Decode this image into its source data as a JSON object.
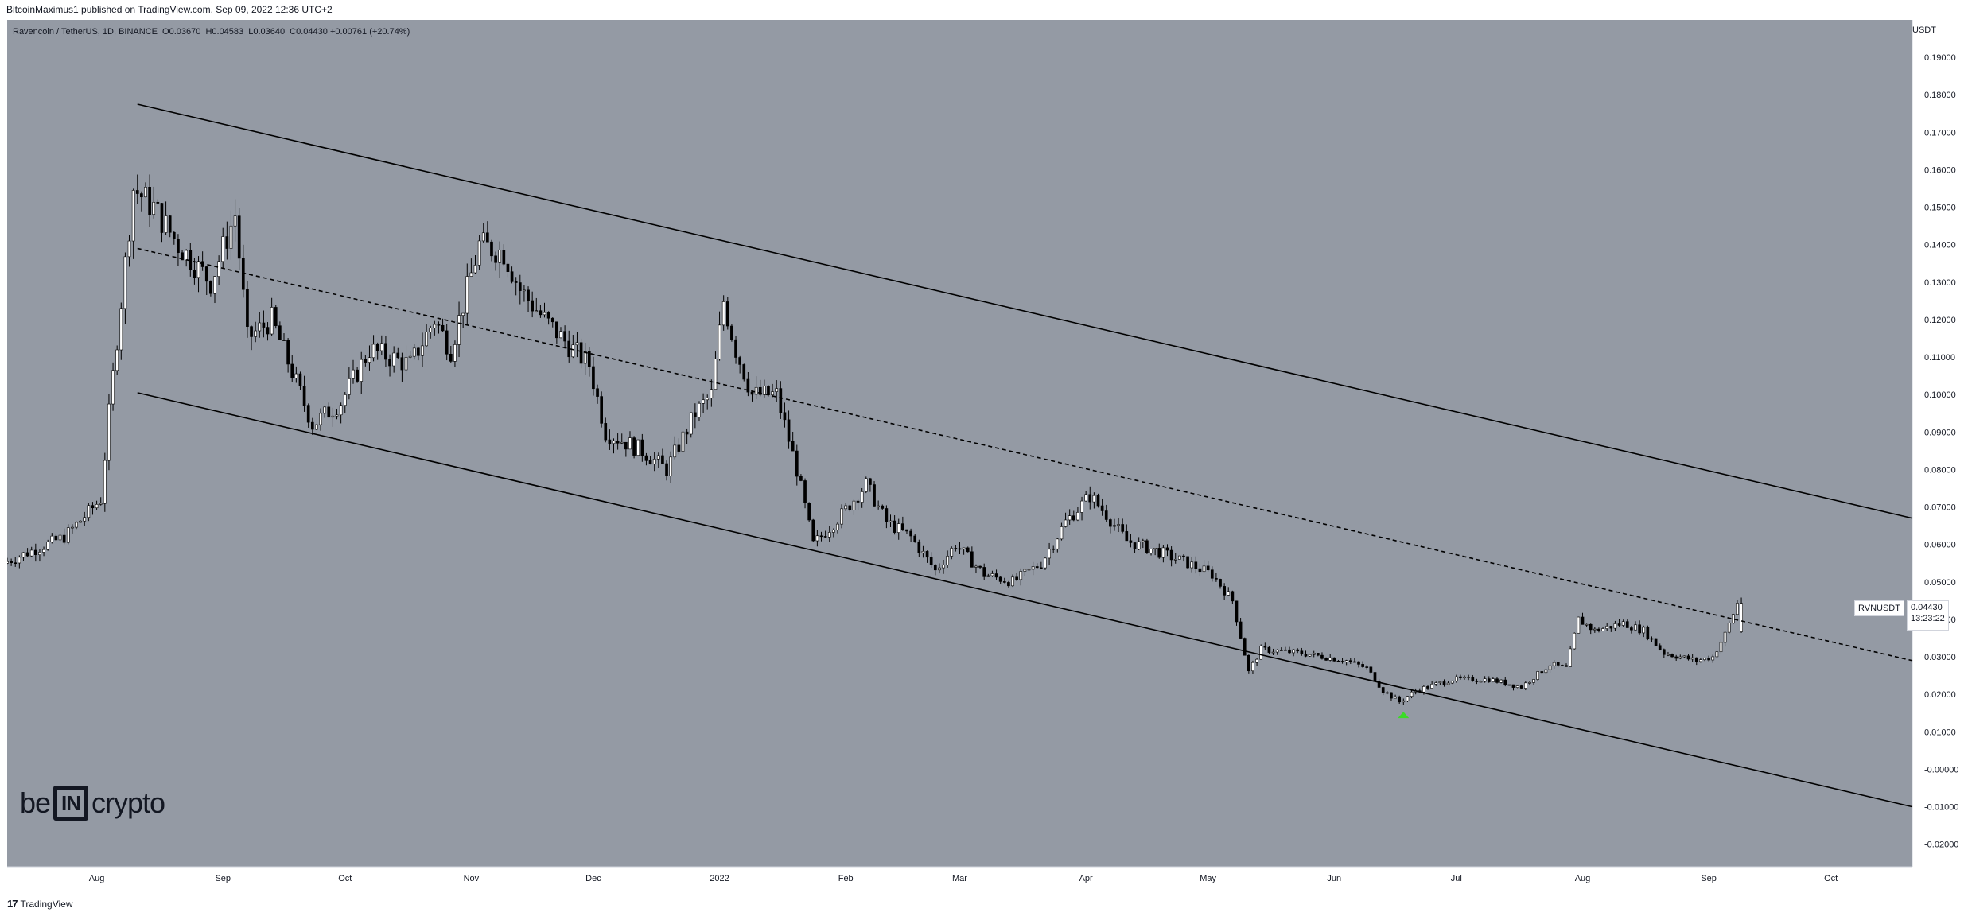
{
  "header": {
    "publish_text": "BitcoinMaximus1 published on TradingView.com, Sep 09, 2022 12:36 UTC+2"
  },
  "legend": {
    "symbol_text": "Ravencoin / TetherUS, 1D, BINANCE",
    "o_label": "O",
    "o_value": "0.03670",
    "h_label": "H",
    "h_value": "0.04583",
    "l_label": "L",
    "l_value": "0.03640",
    "c_label": "C",
    "c_value": "0.04430",
    "change": "+0.00761 (+20.74%)"
  },
  "price_tag": {
    "symbol": "RVNUSDT",
    "price": "0.04430",
    "countdown": "13:23:22"
  },
  "logo": {
    "left": "be",
    "box": "IN",
    "right": "crypto"
  },
  "footer": {
    "brand": "TradingView",
    "icon": "tradingview-logo-icon"
  },
  "colors": {
    "background": "#949aa4",
    "candle_up": "#ffffff",
    "candle_down": "#000000",
    "channel_line": "#000000",
    "marker": "#3bdb27"
  },
  "chart_data": {
    "type": "candlestick",
    "symbol": "RVNUSDT",
    "timeframe": "1D",
    "y_axis_title": "USDT",
    "ylim": [
      -0.026,
      0.2
    ],
    "y_ticks": [
      {
        "value": 0.19,
        "label": "0.19000"
      },
      {
        "value": 0.18,
        "label": "0.18000"
      },
      {
        "value": 0.17,
        "label": "0.17000"
      },
      {
        "value": 0.16,
        "label": "0.16000"
      },
      {
        "value": 0.15,
        "label": "0.15000"
      },
      {
        "value": 0.14,
        "label": "0.14000"
      },
      {
        "value": 0.13,
        "label": "0.13000"
      },
      {
        "value": 0.12,
        "label": "0.12000"
      },
      {
        "value": 0.11,
        "label": "0.11000"
      },
      {
        "value": 0.1,
        "label": "0.10000"
      },
      {
        "value": 0.09,
        "label": "0.09000"
      },
      {
        "value": 0.08,
        "label": "0.08000"
      },
      {
        "value": 0.07,
        "label": "0.07000"
      },
      {
        "value": 0.06,
        "label": "0.06000"
      },
      {
        "value": 0.05,
        "label": "0.05000"
      },
      {
        "value": 0.04,
        "label": "0.04000"
      },
      {
        "value": 0.03,
        "label": "0.03000"
      },
      {
        "value": 0.02,
        "label": "0.02000"
      },
      {
        "value": 0.01,
        "label": "0.01000"
      },
      {
        "value": 0.0,
        "label": "-0.00000"
      },
      {
        "value": -0.01,
        "label": "-0.01000"
      },
      {
        "value": -0.02,
        "label": "-0.02000"
      }
    ],
    "x_ticks": [
      {
        "date": "2021-08-01",
        "label": "Aug"
      },
      {
        "date": "2021-09-01",
        "label": "Sep"
      },
      {
        "date": "2021-10-01",
        "label": "Oct"
      },
      {
        "date": "2021-11-01",
        "label": "Nov"
      },
      {
        "date": "2021-12-01",
        "label": "Dec"
      },
      {
        "date": "2022-01-01",
        "label": "2022"
      },
      {
        "date": "2022-02-01",
        "label": "Feb"
      },
      {
        "date": "2022-03-01",
        "label": "Mar"
      },
      {
        "date": "2022-04-01",
        "label": "Apr"
      },
      {
        "date": "2022-05-01",
        "label": "May"
      },
      {
        "date": "2022-06-01",
        "label": "Jun"
      },
      {
        "date": "2022-07-01",
        "label": "Jul"
      },
      {
        "date": "2022-08-01",
        "label": "Aug"
      },
      {
        "date": "2022-09-01",
        "label": "Sep"
      },
      {
        "date": "2022-10-01",
        "label": "Oct"
      }
    ],
    "x_range": [
      "2021-07-10",
      "2022-10-21"
    ],
    "price_path": [
      [
        "2021-07-10",
        0.055
      ],
      [
        "2021-07-25",
        0.062
      ],
      [
        "2021-08-03",
        0.072
      ],
      [
        "2021-08-05",
        0.095
      ],
      [
        "2021-08-08",
        0.125
      ],
      [
        "2021-08-11",
        0.155
      ],
      [
        "2021-08-16",
        0.15
      ],
      [
        "2021-08-22",
        0.14
      ],
      [
        "2021-08-30",
        0.13
      ],
      [
        "2021-09-05",
        0.148
      ],
      [
        "2021-09-08",
        0.115
      ],
      [
        "2021-09-14",
        0.12
      ],
      [
        "2021-09-24",
        0.092
      ],
      [
        "2021-10-01",
        0.098
      ],
      [
        "2021-10-08",
        0.112
      ],
      [
        "2021-10-18",
        0.108
      ],
      [
        "2021-10-24",
        0.12
      ],
      [
        "2021-10-28",
        0.112
      ],
      [
        "2021-11-04",
        0.14
      ],
      [
        "2021-11-10",
        0.138
      ],
      [
        "2021-11-14",
        0.128
      ],
      [
        "2021-11-20",
        0.12
      ],
      [
        "2021-11-27",
        0.112
      ],
      [
        "2021-12-01",
        0.108
      ],
      [
        "2021-12-05",
        0.09
      ],
      [
        "2021-12-14",
        0.085
      ],
      [
        "2021-12-20",
        0.08
      ],
      [
        "2021-12-27",
        0.095
      ],
      [
        "2021-12-31",
        0.1
      ],
      [
        "2022-01-03",
        0.125
      ],
      [
        "2022-01-06",
        0.112
      ],
      [
        "2022-01-10",
        0.1
      ],
      [
        "2022-01-16",
        0.1
      ],
      [
        "2022-01-21",
        0.08
      ],
      [
        "2022-01-25",
        0.06
      ],
      [
        "2022-02-01",
        0.068
      ],
      [
        "2022-02-07",
        0.076
      ],
      [
        "2022-02-12",
        0.066
      ],
      [
        "2022-02-18",
        0.062
      ],
      [
        "2022-02-24",
        0.053
      ],
      [
        "2022-03-01",
        0.06
      ],
      [
        "2022-03-08",
        0.052
      ],
      [
        "2022-03-15",
        0.05
      ],
      [
        "2022-03-22",
        0.055
      ],
      [
        "2022-03-28",
        0.066
      ],
      [
        "2022-04-03",
        0.073
      ],
      [
        "2022-04-07",
        0.068
      ],
      [
        "2022-04-12",
        0.061
      ],
      [
        "2022-04-20",
        0.058
      ],
      [
        "2022-04-27",
        0.055
      ],
      [
        "2022-05-03",
        0.052
      ],
      [
        "2022-05-08",
        0.045
      ],
      [
        "2022-05-12",
        0.026
      ],
      [
        "2022-05-15",
        0.032
      ],
      [
        "2022-05-25",
        0.031
      ],
      [
        "2022-06-05",
        0.029
      ],
      [
        "2022-06-10",
        0.027
      ],
      [
        "2022-06-14",
        0.021
      ],
      [
        "2022-06-18",
        0.018
      ],
      [
        "2022-06-22",
        0.021
      ],
      [
        "2022-07-01",
        0.024
      ],
      [
        "2022-07-10",
        0.024
      ],
      [
        "2022-07-18",
        0.022
      ],
      [
        "2022-07-25",
        0.028
      ],
      [
        "2022-07-29",
        0.027
      ],
      [
        "2022-08-01",
        0.04
      ],
      [
        "2022-08-05",
        0.037
      ],
      [
        "2022-08-12",
        0.039
      ],
      [
        "2022-08-17",
        0.037
      ],
      [
        "2022-08-22",
        0.031
      ],
      [
        "2022-08-30",
        0.029
      ],
      [
        "2022-09-03",
        0.03
      ],
      [
        "2022-09-06",
        0.036
      ],
      [
        "2022-09-09",
        0.0443
      ]
    ],
    "last_candle": {
      "open": 0.0367,
      "high": 0.04583,
      "low": 0.0364,
      "close": 0.0443
    },
    "channel": {
      "upper": [
        [
          "2021-08-11",
          0.1775
        ],
        [
          "2022-10-21",
          0.067
        ]
      ],
      "lower": [
        [
          "2021-08-11",
          0.1005
        ],
        [
          "2022-10-21",
          -0.01
        ]
      ],
      "middle": [
        [
          "2021-08-11",
          0.139
        ],
        [
          "2022-10-21",
          0.029
        ]
      ],
      "middle_style": "dashed"
    },
    "marker": {
      "type": "arrow-up",
      "date": "2022-06-18",
      "value": 0.0145
    }
  }
}
